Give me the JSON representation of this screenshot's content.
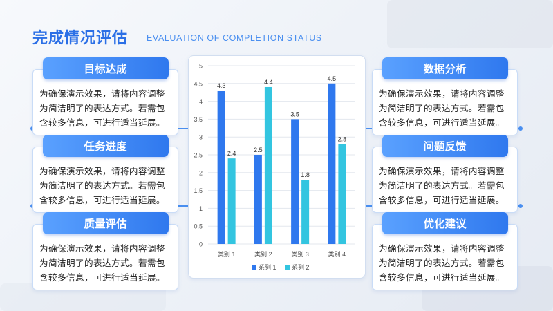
{
  "header": {
    "title": "完成情况评估",
    "subtitle": "EVALUATION OF COMPLETION STATUS"
  },
  "cards": {
    "left": [
      {
        "label": "目标达成",
        "text": "为确保演示效果，请将内容调整为简洁明了的表达方式。若需包含较多信息，可进行适当延展。"
      },
      {
        "label": "任务进度",
        "text": "为确保演示效果，请将内容调整为简洁明了的表达方式。若需包含较多信息，可进行适当延展。"
      },
      {
        "label": "质量评估",
        "text": "为确保演示效果，请将内容调整为简洁明了的表达方式。若需包含较多信息，可进行适当延展。"
      }
    ],
    "right": [
      {
        "label": "数据分析",
        "text": "为确保演示效果，请将内容调整为简洁明了的表达方式。若需包含较多信息，可进行适当延展。"
      },
      {
        "label": "问题反馈",
        "text": "为确保演示效果，请将内容调整为简洁明了的表达方式。若需包含较多信息，可进行适当延展。"
      },
      {
        "label": "优化建议",
        "text": "为确保演示效果，请将内容调整为简洁明了的表达方式。若需包含较多信息，可进行适当延展。"
      }
    ]
  },
  "colors": {
    "accent": "#2f78ee",
    "series1": "#2f78ee",
    "series2": "#33c5e0"
  },
  "chart_data": {
    "type": "bar",
    "categories": [
      "类别 1",
      "类别 2",
      "类别 3",
      "类别 4"
    ],
    "series": [
      {
        "name": "系列 1",
        "values": [
          4.3,
          2.5,
          3.5,
          4.5
        ]
      },
      {
        "name": "系列 2",
        "values": [
          2.4,
          4.4,
          1.8,
          2.8
        ]
      }
    ],
    "ylim": [
      0,
      5
    ],
    "yticks": [
      "0",
      "0.5",
      "1",
      "1.5",
      "2",
      "2.5",
      "3",
      "3.5",
      "4",
      "4.5",
      "5"
    ],
    "grid": true,
    "legend": "bottom"
  }
}
